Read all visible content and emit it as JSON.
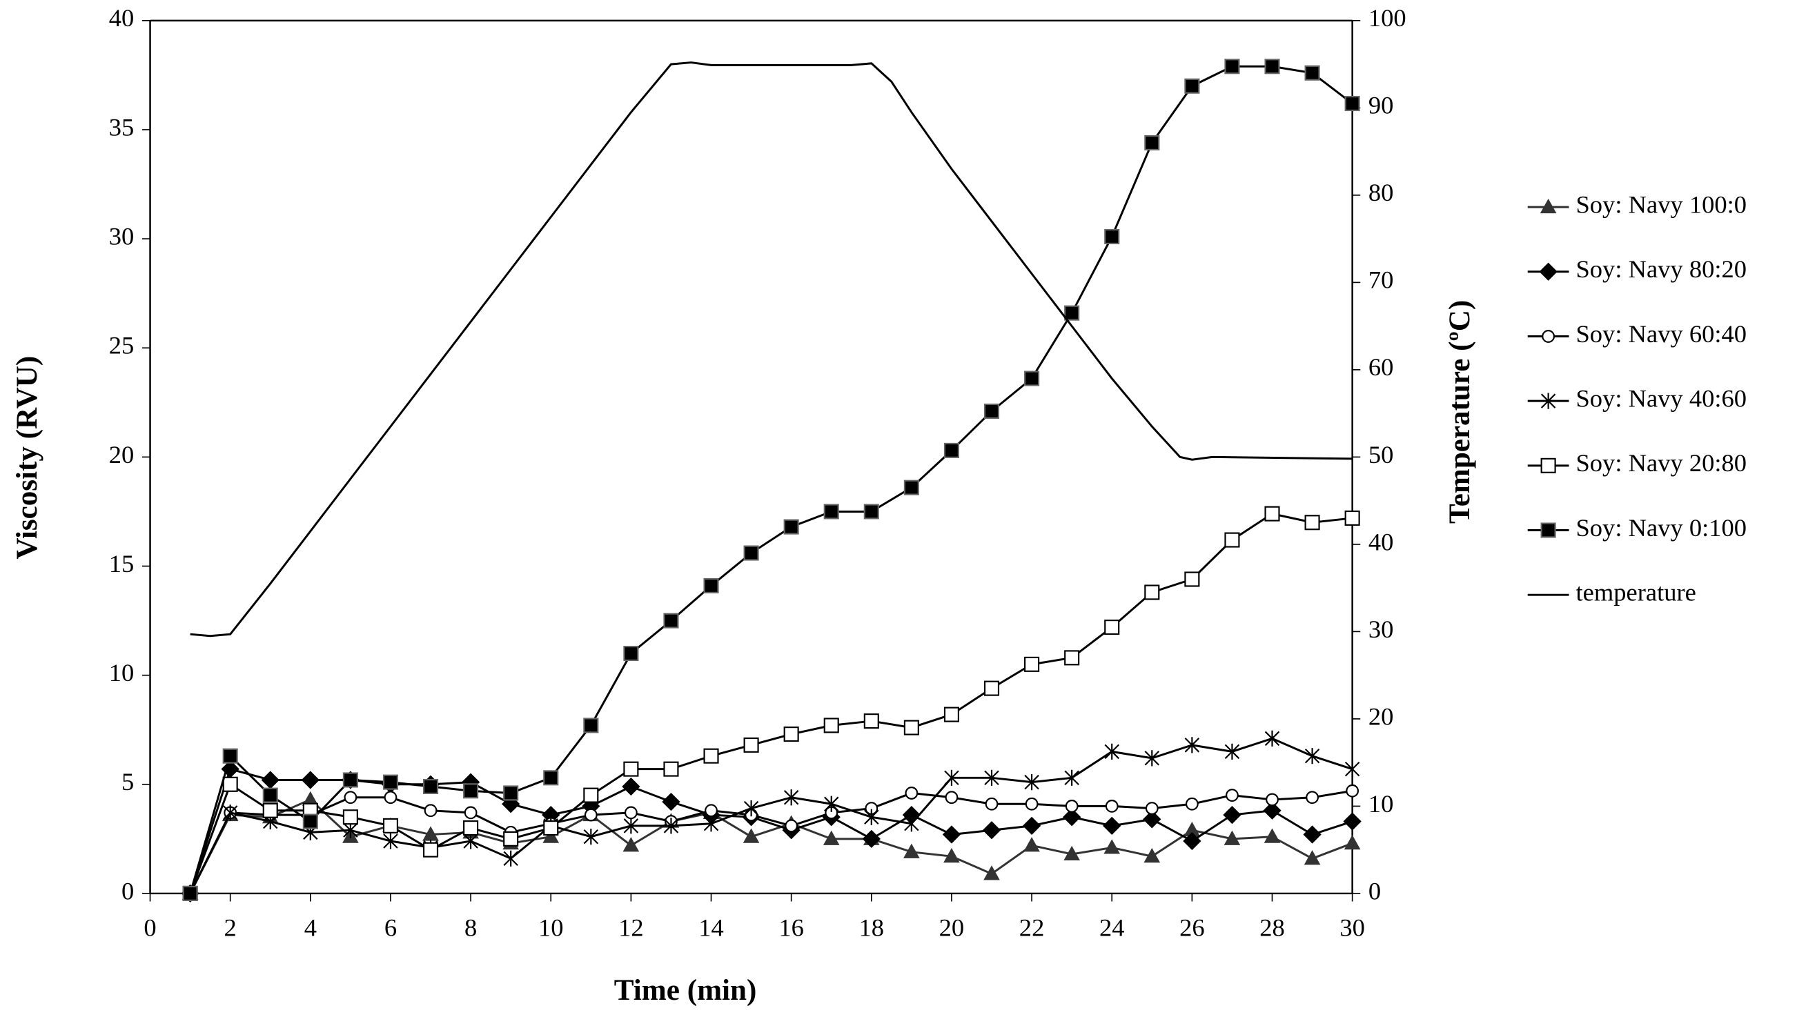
{
  "chart_data": {
    "type": "line",
    "x_label": "Time (min)",
    "y_label": "Viscosity (RVU)",
    "y2_label": "Temperature (ºC)",
    "xlim": [
      0,
      30
    ],
    "xticks": [
      0,
      2,
      4,
      6,
      8,
      10,
      12,
      14,
      16,
      18,
      20,
      22,
      24,
      26,
      28,
      30
    ],
    "ylim": [
      0,
      40
    ],
    "yticks": [
      0,
      5,
      10,
      15,
      20,
      25,
      30,
      35,
      40
    ],
    "y2lim": [
      0,
      100
    ],
    "y2ticks": [
      0,
      10,
      20,
      30,
      40,
      50,
      60,
      70,
      80,
      90,
      100
    ],
    "legend": "right",
    "series": [
      {
        "name": "Soy: Navy 100:0",
        "color": "#333333",
        "marker": "triangle",
        "x": [
          1,
          2,
          3,
          4,
          5,
          6,
          7,
          8,
          9,
          10,
          11,
          12,
          13,
          14,
          15,
          16,
          17,
          18,
          19,
          20,
          21,
          22,
          23,
          24,
          25,
          26,
          27,
          28,
          29,
          30
        ],
        "values": [
          0,
          3.6,
          3.5,
          4.3,
          2.6,
          3.1,
          2.7,
          2.8,
          2.3,
          2.6,
          3.6,
          2.2,
          3.3,
          3.7,
          2.6,
          3.2,
          2.5,
          2.5,
          1.9,
          1.7,
          0.9,
          2.2,
          1.8,
          2.1,
          1.7,
          2.9,
          2.5,
          2.6,
          1.6,
          2.3
        ]
      },
      {
        "name": "Soy: Navy 80:20",
        "color": "#000000",
        "marker": "diamond",
        "x": [
          1,
          2,
          3,
          4,
          5,
          6,
          7,
          8,
          9,
          10,
          11,
          12,
          13,
          14,
          15,
          16,
          17,
          18,
          19,
          20,
          21,
          22,
          23,
          24,
          25,
          26,
          27,
          28,
          29,
          30
        ],
        "values": [
          0,
          5.7,
          5.2,
          5.2,
          5.2,
          5.0,
          5.0,
          5.1,
          4.1,
          3.6,
          4.0,
          4.9,
          4.2,
          3.6,
          3.5,
          2.9,
          3.5,
          2.5,
          3.6,
          2.7,
          2.9,
          3.1,
          3.5,
          3.1,
          3.4,
          2.4,
          3.6,
          3.8,
          2.7,
          3.3
        ]
      },
      {
        "name": "Soy: Navy 60:40",
        "color": "#000000",
        "marker": "circle",
        "x": [
          1,
          2,
          3,
          4,
          5,
          6,
          7,
          8,
          9,
          10,
          11,
          12,
          13,
          14,
          15,
          16,
          17,
          18,
          19,
          20,
          21,
          22,
          23,
          24,
          25,
          26,
          27,
          28,
          29,
          30
        ],
        "values": [
          0,
          3.7,
          3.6,
          3.6,
          4.4,
          4.4,
          3.8,
          3.7,
          2.8,
          3.2,
          3.6,
          3.7,
          3.3,
          3.8,
          3.6,
          3.1,
          3.7,
          3.9,
          4.6,
          4.4,
          4.1,
          4.1,
          4.0,
          4.0,
          3.9,
          4.1,
          4.5,
          4.3,
          4.4,
          4.7
        ]
      },
      {
        "name": "Soy: Navy 40:60",
        "color": "#000000",
        "marker": "star",
        "x": [
          1,
          2,
          3,
          4,
          5,
          6,
          7,
          8,
          9,
          10,
          11,
          12,
          13,
          14,
          15,
          16,
          17,
          18,
          19,
          20,
          21,
          22,
          23,
          24,
          25,
          26,
          27,
          28,
          29,
          30
        ],
        "values": [
          0,
          3.7,
          3.3,
          2.8,
          2.9,
          2.4,
          2.1,
          2.4,
          1.6,
          3.1,
          2.6,
          3.1,
          3.1,
          3.2,
          3.9,
          4.4,
          4.1,
          3.5,
          3.2,
          5.3,
          5.3,
          5.1,
          5.3,
          6.5,
          6.2,
          6.8,
          6.5,
          7.1,
          6.3,
          5.7
        ]
      },
      {
        "name": "Soy: Navy 20:80",
        "color": "#000000",
        "marker": "open-square",
        "x": [
          1,
          2,
          3,
          4,
          5,
          6,
          7,
          8,
          9,
          10,
          11,
          12,
          13,
          14,
          15,
          16,
          17,
          18,
          19,
          20,
          21,
          22,
          23,
          24,
          25,
          26,
          27,
          28,
          29,
          30
        ],
        "values": [
          0,
          5.0,
          3.8,
          3.8,
          3.5,
          3.1,
          2.0,
          3.0,
          2.5,
          3.0,
          4.5,
          5.7,
          5.7,
          6.3,
          6.8,
          7.3,
          7.7,
          7.9,
          7.6,
          8.2,
          9.4,
          10.5,
          10.8,
          12.2,
          13.8,
          14.4,
          16.2,
          17.4,
          17.0,
          17.2
        ]
      },
      {
        "name": "Soy: Navy 0:100",
        "color": "#000000",
        "marker": "square",
        "x": [
          1,
          2,
          3,
          4,
          5,
          6,
          7,
          8,
          9,
          10,
          11,
          12,
          13,
          14,
          15,
          16,
          17,
          18,
          19,
          20,
          21,
          22,
          23,
          24,
          25,
          26,
          27,
          28,
          29,
          30
        ],
        "values": [
          0,
          6.3,
          4.5,
          3.3,
          5.2,
          5.1,
          4.9,
          4.7,
          4.6,
          5.3,
          7.7,
          11.0,
          12.5,
          14.1,
          15.6,
          16.8,
          17.5,
          17.5,
          18.6,
          20.3,
          22.1,
          23.6,
          26.6,
          30.1,
          34.4,
          37.0,
          37.9,
          37.9,
          37.6,
          36.2
        ]
      },
      {
        "name": "temperature",
        "color": "#000000",
        "marker": "none",
        "axis": "y2",
        "x": [
          1,
          1.5,
          2,
          3,
          4,
          5,
          6,
          7,
          8,
          9,
          10,
          11,
          12,
          13,
          13.5,
          14,
          17.5,
          18,
          18.5,
          19,
          20,
          21,
          22,
          23,
          24,
          25,
          25.7,
          26,
          26.5,
          30
        ],
        "values": [
          29.7,
          29.5,
          29.7,
          35.5,
          41.5,
          47.5,
          53.5,
          59.5,
          65.5,
          71.5,
          77.5,
          83.5,
          89.5,
          95,
          95.2,
          94.9,
          94.9,
          95.1,
          93,
          89.5,
          83,
          77,
          71,
          65,
          59,
          53.5,
          50,
          49.7,
          50,
          49.8
        ]
      }
    ]
  }
}
